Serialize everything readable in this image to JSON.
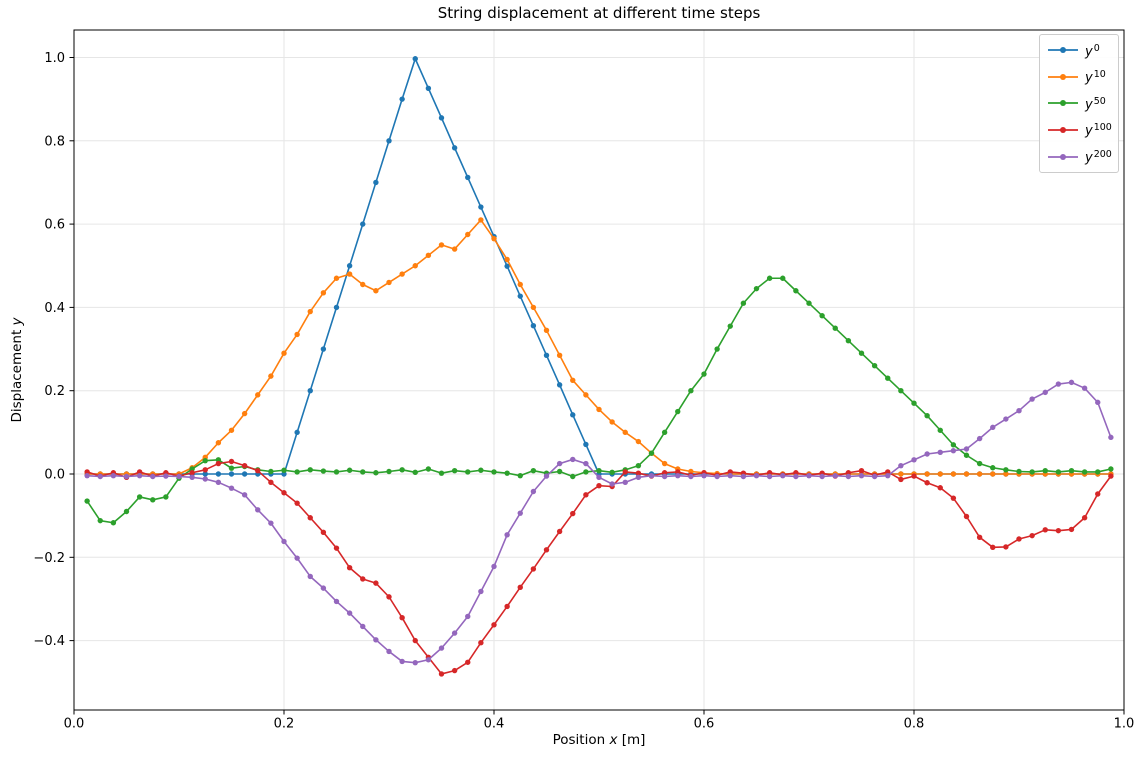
{
  "figure": {
    "title": "String displacement at different time steps",
    "background": "#ffffff"
  },
  "axes": {
    "xlabel": {
      "pre": "Position ",
      "var": "x",
      "post": " [m]"
    },
    "ylabel": {
      "pre": "Displacement ",
      "var": "y"
    },
    "x_tick_labels": [
      "0.0",
      "0.2",
      "0.4",
      "0.6",
      "0.8",
      "1.0"
    ],
    "x_tick_values": [
      0,
      0.2,
      0.4,
      0.6,
      0.8,
      1
    ],
    "y_tick_labels": [
      "−0.4",
      "−0.2",
      "0.0",
      "0.2",
      "0.4",
      "0.6",
      "0.8",
      "1.0"
    ],
    "y_tick_values": [
      -0.4,
      -0.2,
      0,
      0.2,
      0.4,
      0.6,
      0.8,
      1
    ],
    "grid_color": "#e6e6e6",
    "spine_color": "#000000"
  },
  "chart_data": {
    "type": "line",
    "title": "String displacement at different time steps",
    "xlabel": "Position x [m]",
    "ylabel": "Displacement y",
    "xlim": [
      0,
      1
    ],
    "ylim": [
      -0.5666,
      1.066
    ],
    "grid": true,
    "legend_position": "upper right",
    "x": [
      0.0125,
      0.025,
      0.0375,
      0.05,
      0.0625,
      0.075,
      0.0875,
      0.1,
      0.1125,
      0.125,
      0.1375,
      0.15,
      0.1625,
      0.175,
      0.1875,
      0.2,
      0.2125,
      0.225,
      0.2375,
      0.25,
      0.2625,
      0.275,
      0.2875,
      0.3,
      0.3125,
      0.325,
      0.3375,
      0.35,
      0.3625,
      0.375,
      0.3875,
      0.4,
      0.4125,
      0.425,
      0.4375,
      0.45,
      0.4625,
      0.475,
      0.4875,
      0.5,
      0.5125,
      0.525,
      0.5375,
      0.55,
      0.5625,
      0.575,
      0.5875,
      0.6,
      0.6125,
      0.625,
      0.6375,
      0.65,
      0.6625,
      0.675,
      0.6875,
      0.7,
      0.7125,
      0.725,
      0.7375,
      0.75,
      0.7625,
      0.775,
      0.7875,
      0.8,
      0.8125,
      0.825,
      0.8375,
      0.85,
      0.8625,
      0.875,
      0.8875,
      0.9,
      0.9125,
      0.925,
      0.9375,
      0.95,
      0.9625,
      0.975,
      0.9875
    ],
    "series": [
      {
        "name": "y0",
        "label_base": "y",
        "label_exp": "0",
        "color": "#1f77b4",
        "values": [
          0,
          0,
          0,
          0,
          0,
          0,
          0,
          0,
          0,
          0,
          0,
          0,
          0,
          0,
          0,
          0,
          0.1,
          0.2,
          0.3,
          0.4,
          0.5,
          0.6,
          0.7,
          0.8,
          0.9,
          0.997,
          0.926,
          0.855,
          0.783,
          0.712,
          0.641,
          0.57,
          0.499,
          0.427,
          0.356,
          0.285,
          0.214,
          0.142,
          0.071,
          0,
          0,
          0,
          0,
          0,
          0,
          0,
          0,
          0,
          0,
          0,
          0,
          0,
          0,
          0,
          0,
          0,
          0,
          0,
          0,
          0,
          0,
          0,
          0,
          0,
          0,
          0,
          0,
          0,
          0,
          0,
          0,
          0,
          0,
          0,
          0,
          0,
          0,
          0,
          0
        ]
      },
      {
        "name": "y10",
        "label_base": "y",
        "label_exp": "10",
        "color": "#ff7f0e",
        "values": [
          0,
          0,
          0,
          0,
          0,
          0,
          0,
          0,
          0.015,
          0.04,
          0.075,
          0.105,
          0.145,
          0.19,
          0.235,
          0.29,
          0.335,
          0.39,
          0.435,
          0.47,
          0.48,
          0.455,
          0.44,
          0.46,
          0.48,
          0.5,
          0.525,
          0.55,
          0.54,
          0.575,
          0.61,
          0.565,
          0.515,
          0.455,
          0.4,
          0.345,
          0.285,
          0.225,
          0.19,
          0.155,
          0.125,
          0.1,
          0.078,
          0.05,
          0.025,
          0.012,
          0.006,
          0.003,
          0.001,
          0,
          0,
          0,
          0,
          0,
          0,
          0,
          0,
          0,
          0,
          0,
          0,
          0,
          0,
          0,
          0,
          0,
          0,
          0,
          0,
          0,
          0,
          0,
          0,
          0,
          0,
          0,
          0,
          0,
          0
        ]
      },
      {
        "name": "y50",
        "label_base": "y",
        "label_exp": "50",
        "color": "#2ca02c",
        "values": [
          -0.065,
          -0.112,
          -0.117,
          -0.09,
          -0.055,
          -0.062,
          -0.055,
          -0.01,
          0.012,
          0.032,
          0.034,
          0.014,
          0.018,
          0.01,
          0.006,
          0.009,
          0.005,
          0.01,
          0.007,
          0.005,
          0.009,
          0.005,
          0.003,
          0.006,
          0.01,
          0.004,
          0.012,
          0.002,
          0.008,
          0.005,
          0.009,
          0.005,
          0.002,
          -0.004,
          0.008,
          0.002,
          0.006,
          -0.006,
          0.005,
          0.008,
          0.004,
          0.01,
          0.02,
          0.05,
          0.1,
          0.15,
          0.2,
          0.24,
          0.3,
          0.355,
          0.41,
          0.445,
          0.47,
          0.47,
          0.44,
          0.41,
          0.38,
          0.35,
          0.32,
          0.29,
          0.26,
          0.23,
          0.2,
          0.17,
          0.14,
          0.105,
          0.07,
          0.045,
          0.025,
          0.015,
          0.01,
          0.006,
          0.005,
          0.008,
          0.005,
          0.008,
          0.005,
          0.005,
          0.012
        ]
      },
      {
        "name": "y100",
        "label_base": "y",
        "label_exp": "100",
        "color": "#d62728",
        "values": [
          0.005,
          -0.005,
          0.003,
          -0.008,
          0.005,
          -0.005,
          0.003,
          -0.005,
          0.003,
          0.01,
          0.025,
          0.03,
          0.02,
          0.008,
          -0.02,
          -0.045,
          -0.07,
          -0.105,
          -0.14,
          -0.178,
          -0.225,
          -0.252,
          -0.262,
          -0.295,
          -0.345,
          -0.4,
          -0.44,
          -0.48,
          -0.472,
          -0.452,
          -0.405,
          -0.362,
          -0.318,
          -0.272,
          -0.228,
          -0.182,
          -0.138,
          -0.095,
          -0.05,
          -0.028,
          -0.03,
          0.005,
          0.002,
          -0.005,
          0.003,
          0.005,
          -0.003,
          0.003,
          -0.003,
          0.005,
          0.002,
          -0.003,
          0.003,
          -0.002,
          0.003,
          -0.003,
          0.002,
          -0.005,
          0.003,
          0.008,
          -0.003,
          0.005,
          -0.013,
          -0.005,
          -0.021,
          -0.033,
          -0.058,
          -0.102,
          -0.152,
          -0.176,
          -0.175,
          -0.156,
          -0.148,
          -0.134,
          -0.136,
          -0.133,
          -0.105,
          -0.048,
          -0.005
        ]
      },
      {
        "name": "y200",
        "label_base": "y",
        "label_exp": "200",
        "color": "#9467bd",
        "values": [
          -0.004,
          -0.006,
          -0.004,
          -0.006,
          -0.004,
          -0.006,
          -0.005,
          -0.006,
          -0.008,
          -0.012,
          -0.02,
          -0.034,
          -0.05,
          -0.086,
          -0.118,
          -0.162,
          -0.202,
          -0.246,
          -0.274,
          -0.306,
          -0.334,
          -0.366,
          -0.398,
          -0.426,
          -0.45,
          -0.453,
          -0.446,
          -0.418,
          -0.382,
          -0.342,
          -0.282,
          -0.222,
          -0.146,
          -0.094,
          -0.042,
          -0.005,
          0.025,
          0.035,
          0.025,
          -0.008,
          -0.024,
          -0.02,
          -0.008,
          -0.004,
          -0.006,
          -0.004,
          -0.006,
          -0.004,
          -0.006,
          -0.004,
          -0.006,
          -0.004,
          -0.006,
          -0.004,
          -0.006,
          -0.004,
          -0.006,
          -0.004,
          -0.006,
          -0.004,
          -0.006,
          -0.004,
          0.02,
          0.034,
          0.048,
          0.052,
          0.056,
          0.06,
          0.085,
          0.112,
          0.132,
          0.152,
          0.18,
          0.196,
          0.216,
          0.22,
          0.206,
          0.172,
          0.088
        ]
      }
    ]
  }
}
